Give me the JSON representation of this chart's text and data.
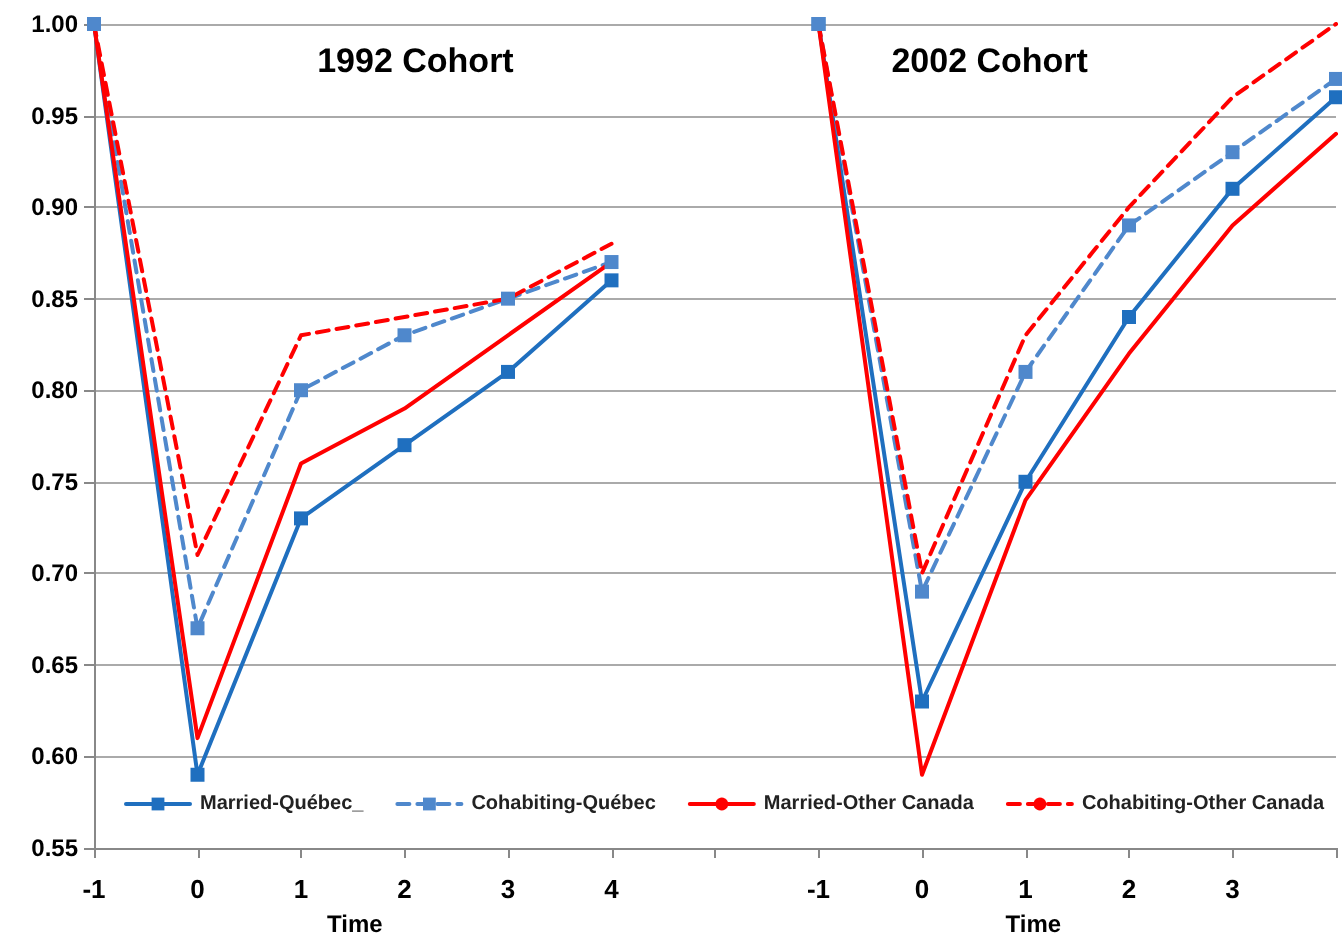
{
  "chart_data": {
    "type": "line",
    "annotations": [
      "1992 Cohort",
      "2002 Cohort"
    ],
    "xlabel": "Time",
    "categories": [
      "-1",
      "0",
      "1",
      "2",
      "3",
      "4",
      null,
      "-1",
      "0",
      "1",
      "2",
      "3",
      null
    ],
    "series": [
      {
        "name": "Married-Québec_",
        "color": "#1f6fbf",
        "marker": "square",
        "line_style": "solid",
        "values": [
          1.0,
          0.59,
          0.73,
          0.77,
          0.81,
          0.86,
          null,
          1.0,
          0.63,
          0.75,
          0.84,
          0.91,
          0.96
        ]
      },
      {
        "name": "Cohabiting-Québec",
        "color": "#4f88cc",
        "marker": "square",
        "line_style": "dashed",
        "values": [
          1.0,
          0.67,
          0.8,
          0.83,
          0.85,
          0.87,
          null,
          1.0,
          0.69,
          0.81,
          0.89,
          0.93,
          0.97
        ]
      },
      {
        "name": "Married-Other Canada",
        "color": "#ff0000",
        "marker": "none",
        "line_style": "solid",
        "values": [
          1.0,
          0.61,
          0.76,
          0.79,
          0.83,
          0.87,
          null,
          1.0,
          0.59,
          0.74,
          0.82,
          0.89,
          0.94
        ]
      },
      {
        "name": "Cohabiting-Other Canada",
        "color": "#ff0000",
        "marker": "none",
        "line_style": "dashed",
        "values": [
          1.0,
          0.71,
          0.83,
          0.84,
          0.85,
          0.88,
          null,
          1.0,
          0.7,
          0.83,
          0.9,
          0.96,
          1.0
        ]
      }
    ],
    "ylim": [
      0.55,
      1.0
    ],
    "yticks": [
      {
        "value": 0.55,
        "label": "0.55"
      },
      {
        "value": 0.6,
        "label": "0.60"
      },
      {
        "value": 0.65,
        "label": "0.65"
      },
      {
        "value": 0.7,
        "label": "0.70"
      },
      {
        "value": 0.75,
        "label": "0.75"
      },
      {
        "value": 0.8,
        "label": "0.80"
      },
      {
        "value": 0.85,
        "label": "0.85"
      },
      {
        "value": 0.9,
        "label": "0.90"
      },
      {
        "value": 0.95,
        "label": "0.95"
      },
      {
        "value": 1.0,
        "label": "1.00"
      }
    ],
    "grid": "y",
    "legend": "bottom"
  }
}
